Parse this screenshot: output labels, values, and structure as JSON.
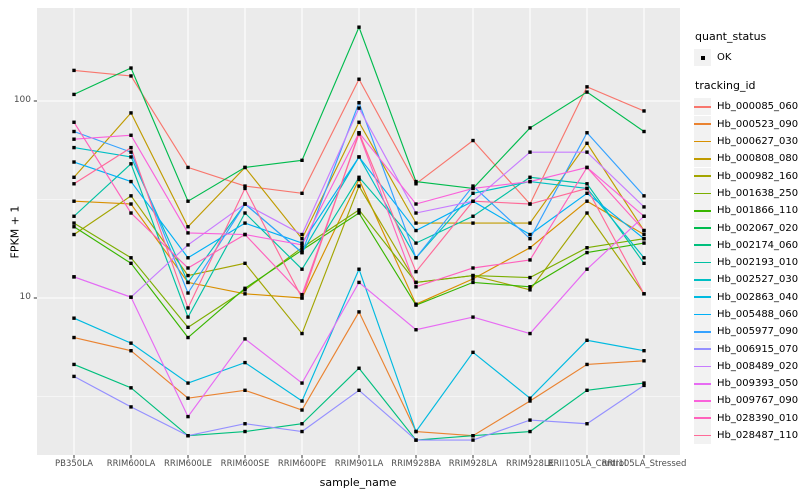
{
  "figure": {
    "background": "#FFFFFF",
    "panel_background": "#EBEBEB",
    "gridline_color": "#FFFFFF",
    "axis_text_color": "#4D4D4D",
    "tick_mark_color": "#333333",
    "point_color": "#000000",
    "legend_key_background": "#F2F2F2"
  },
  "axes": {
    "x_title": "sample_name",
    "y_title": "FPKM + 1"
  },
  "legend": {
    "quant_status": {
      "title": "quant_status",
      "items": [
        {
          "label": "OK",
          "marker": "black-point"
        }
      ]
    },
    "tracking_id": {
      "title": "tracking_id"
    }
  },
  "chart_data": {
    "type": "line",
    "title": "",
    "xlabel": "sample_name",
    "ylabel": "FPKM + 1",
    "x_scale": "categorical",
    "y_scale": "log10",
    "ylim": [
      1.6,
      320
    ],
    "y_ticks": [
      {
        "value": 100,
        "label": "100"
      },
      {
        "value": 10,
        "label": "10"
      }
    ],
    "y_minor_ticks": [
      3.162,
      31.62,
      316.2
    ],
    "grid": true,
    "legend_position": "right",
    "point_marker": "small black square (quant_status = OK)",
    "categories": [
      "PB350LA",
      "RRIM600LA",
      "RRIM600LE",
      "RRIM600SE",
      "RRIM600PE",
      "RRIM901LA",
      "RRIM928BA",
      "RRIM928LA",
      "RRIM928LE",
      "RRII105LA_Control",
      "RRII105LA_Stressed"
    ],
    "series": [
      {
        "name": "Hb_000085_060",
        "color": "#F8766D",
        "values": [
          143,
          134,
          46,
          37,
          34,
          129,
          38,
          63,
          30,
          118,
          89
        ]
      },
      {
        "name": "Hb_000523_090",
        "color": "#EA8331",
        "values": [
          6.3,
          5.4,
          3.1,
          3.4,
          2.7,
          8.5,
          2.1,
          2.0,
          3.0,
          4.6,
          4.8
        ]
      },
      {
        "name": "Hb_000627_030",
        "color": "#D89000",
        "values": [
          31,
          30,
          12,
          10.5,
          10,
          40,
          9.3,
          12.5,
          18,
          31,
          21
        ]
      },
      {
        "name": "Hb_000808_080",
        "color": "#C09B00",
        "values": [
          41,
          87,
          23,
          46,
          20,
          78,
          24,
          24,
          24,
          61,
          22
        ]
      },
      {
        "name": "Hb_000982_160",
        "color": "#A3A500",
        "values": [
          21,
          33,
          13,
          15,
          6.6,
          37,
          12,
          13,
          11,
          27,
          10.5
        ]
      },
      {
        "name": "Hb_001638_250",
        "color": "#7CAE00",
        "values": [
          24,
          16,
          7.1,
          11,
          18,
          28,
          12,
          13,
          12.7,
          18,
          20
        ]
      },
      {
        "name": "Hb_001866_110",
        "color": "#39B600",
        "values": [
          23,
          15,
          6.3,
          11.2,
          17.5,
          27,
          9.2,
          12,
          11.4,
          17,
          19
        ]
      },
      {
        "name": "Hb_002067_020",
        "color": "#00BB4E",
        "values": [
          108,
          147,
          31,
          46,
          50,
          237,
          39,
          36,
          73,
          111,
          70
        ]
      },
      {
        "name": "Hb_002174_060",
        "color": "#00BF7D",
        "values": [
          4.6,
          3.5,
          2.0,
          2.1,
          2.3,
          4.4,
          1.9,
          2.0,
          2.1,
          3.4,
          3.7
        ]
      },
      {
        "name": "Hb_002193_010",
        "color": "#00C1A3",
        "values": [
          26,
          48,
          8.0,
          27,
          14,
          41,
          19,
          26,
          41,
          38,
          15
        ]
      },
      {
        "name": "Hb_002527_030",
        "color": "#00BFC4",
        "values": [
          58,
          52,
          12,
          30,
          17,
          52,
          16,
          34,
          39,
          36,
          16
        ]
      },
      {
        "name": "Hb_002863_040",
        "color": "#00BAE0",
        "values": [
          7.9,
          5.9,
          3.7,
          4.7,
          3.0,
          14,
          2.1,
          5.3,
          3.1,
          6.1,
          5.4
        ]
      },
      {
        "name": "Hb_005488_060",
        "color": "#00B0F6",
        "values": [
          49,
          39,
          16,
          24,
          19,
          52,
          22,
          31,
          21,
          34,
          20
        ]
      },
      {
        "name": "Hb_005977_090",
        "color": "#35A2FF",
        "values": [
          70,
          55,
          10.6,
          30,
          17,
          98,
          16,
          37,
          20,
          69,
          33
        ]
      },
      {
        "name": "Hb_006915_070",
        "color": "#9590FF",
        "values": [
          4.0,
          2.8,
          2.0,
          2.3,
          2.1,
          3.4,
          1.9,
          1.9,
          2.4,
          2.3,
          3.6
        ]
      },
      {
        "name": "Hb_008489_020",
        "color": "#C77CFF",
        "values": [
          12.8,
          10.1,
          18.6,
          30,
          21,
          92,
          27,
          31,
          55,
          55,
          29
        ]
      },
      {
        "name": "Hb_009393_050",
        "color": "#E76BF3",
        "values": [
          12.8,
          10.1,
          2.5,
          6.2,
          3.7,
          12,
          6.9,
          8.0,
          6.6,
          14,
          26
        ]
      },
      {
        "name": "Hb_009767_090",
        "color": "#FA62DB",
        "values": [
          64,
          67,
          21.4,
          21,
          18.6,
          69,
          30,
          36,
          39,
          46,
          26
        ]
      },
      {
        "name": "Hb_028390_010",
        "color": "#FF62BC",
        "values": [
          78,
          27,
          14.2,
          21,
          10.4,
          68,
          11.4,
          14.2,
          15.6,
          46,
          22
        ]
      },
      {
        "name": "Hb_028487_110",
        "color": "#FF6A98",
        "values": [
          38,
          58,
          8.9,
          36,
          10,
          69,
          13.6,
          31,
          30,
          36,
          10.5
        ]
      }
    ]
  }
}
